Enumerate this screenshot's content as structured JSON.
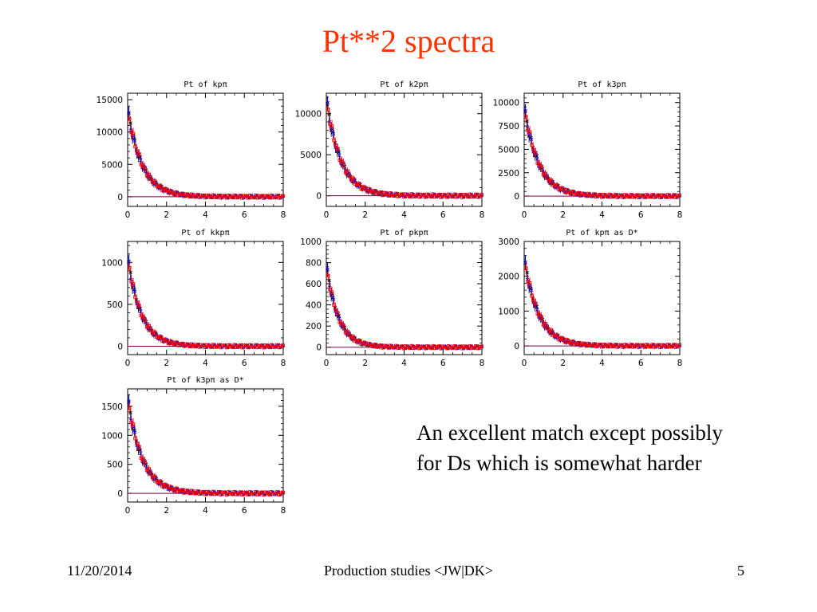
{
  "slide": {
    "title": "Pt**2 spectra",
    "note": "An excellent match except possibly for Ds which is somewhat harder",
    "footer": {
      "date": "11/20/2014",
      "center": "Production studies <JW|DK>",
      "page": "5"
    }
  },
  "colors": {
    "title": "#ff3300",
    "series_red": "#ff0000",
    "series_blue": "#0000ff",
    "series_black": "#000000",
    "zero_line": "#7a0040"
  },
  "chart_data": [
    {
      "type": "scatter",
      "title": "Pt of kpπ",
      "x_ticks": [
        "0",
        "2",
        "4",
        "6",
        "8"
      ],
      "y_ticks": [
        "0",
        "5000",
        "10000",
        "15000"
      ],
      "xlim": [
        0,
        8
      ],
      "ylim": [
        -1500,
        16000
      ],
      "amplitude": 13500,
      "decay": 0.75
    },
    {
      "type": "scatter",
      "title": "Pt of k2pπ",
      "x_ticks": [
        "0",
        "2",
        "4",
        "6",
        "8"
      ],
      "y_ticks": [
        "0",
        "5000",
        "10000"
      ],
      "xlim": [
        0,
        8
      ],
      "ylim": [
        -1300,
        12500
      ],
      "amplitude": 11800,
      "decay": 0.75
    },
    {
      "type": "scatter",
      "title": "Pt of k3pπ",
      "x_ticks": [
        "0",
        "2",
        "4",
        "6",
        "8"
      ],
      "y_ticks": [
        "0",
        "2500",
        "5000",
        "7500",
        "10000"
      ],
      "xlim": [
        0,
        8
      ],
      "ylim": [
        -1100,
        11000
      ],
      "amplitude": 9500,
      "decay": 0.75
    },
    {
      "type": "scatter",
      "title": "Pt of kkpπ",
      "x_ticks": [
        "0",
        "2",
        "4",
        "6",
        "8"
      ],
      "y_ticks": [
        "0",
        "500",
        "1000"
      ],
      "xlim": [
        0,
        8
      ],
      "ylim": [
        -100,
        1250
      ],
      "amplitude": 1060,
      "decay": 0.7
    },
    {
      "type": "scatter",
      "title": "Pt of pkpπ",
      "x_ticks": [
        "0",
        "2",
        "4",
        "6",
        "8"
      ],
      "y_ticks": [
        "0",
        "200",
        "400",
        "600",
        "800",
        "1000"
      ],
      "xlim": [
        0,
        8
      ],
      "ylim": [
        -70,
        1000
      ],
      "amplitude": 780,
      "decay": 0.62
    },
    {
      "type": "scatter",
      "title": "Pt of kpπ as D*",
      "x_ticks": [
        "0",
        "2",
        "4",
        "6",
        "8"
      ],
      "y_ticks": [
        "0",
        "1000",
        "2000",
        "3000"
      ],
      "xlim": [
        0,
        8
      ],
      "ylim": [
        -250,
        3000
      ],
      "amplitude": 2500,
      "decay": 0.75
    },
    {
      "type": "scatter",
      "title": "Pt of k3pπ as D*",
      "x_ticks": [
        "0",
        "2",
        "4",
        "6",
        "8"
      ],
      "y_ticks": [
        "0",
        "500",
        "1000",
        "1500"
      ],
      "xlim": [
        0,
        8
      ],
      "ylim": [
        -150,
        1800
      ],
      "amplitude": 1650,
      "decay": 0.75
    }
  ]
}
